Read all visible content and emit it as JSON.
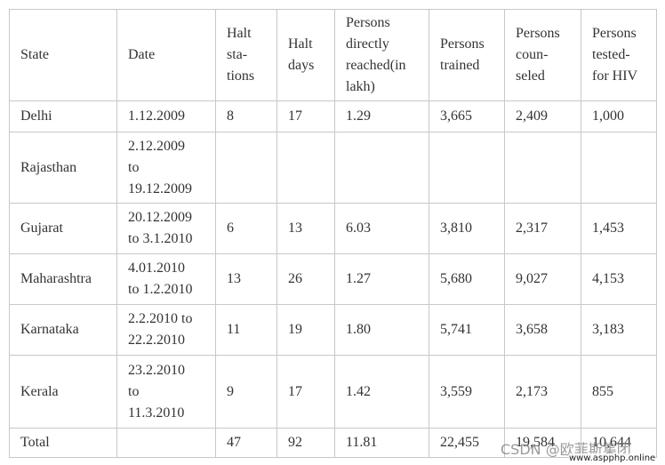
{
  "table": {
    "header": [
      [
        "State"
      ],
      [
        "Date"
      ],
      [
        "Halt",
        "sta-",
        "tions"
      ],
      [
        "Halt",
        "days"
      ],
      [
        "Persons",
        "directly",
        "reached(in",
        "lakh)"
      ],
      [
        "Persons",
        "trained"
      ],
      [
        "Persons",
        "coun-",
        "seled"
      ],
      [
        "Persons",
        "tested-",
        "for HIV"
      ]
    ],
    "rows": [
      [
        [
          "Delhi"
        ],
        [
          "1.12.2009"
        ],
        [
          "8"
        ],
        [
          "17"
        ],
        [
          "1.29"
        ],
        [
          "3,665"
        ],
        [
          "2,409"
        ],
        [
          "1,000"
        ]
      ],
      [
        [
          "Rajasthan"
        ],
        [
          "2.12.2009",
          "to",
          "19.12.2009"
        ],
        null,
        null,
        null,
        null,
        null,
        null
      ],
      [
        [
          "Gujarat"
        ],
        [
          "20.12.2009",
          "to 3.1.2010"
        ],
        [
          "6"
        ],
        [
          "13"
        ],
        [
          "6.03"
        ],
        [
          "3,810"
        ],
        [
          "2,317"
        ],
        [
          "1,453"
        ]
      ],
      [
        [
          "Maharashtra"
        ],
        [
          "4.01.2010",
          "to 1.2.2010"
        ],
        [
          "13"
        ],
        [
          "26"
        ],
        [
          "1.27"
        ],
        [
          "5,680"
        ],
        [
          "9,027"
        ],
        [
          "4,153"
        ]
      ],
      [
        [
          "Karnataka"
        ],
        [
          "2.2.2010 to",
          "22.2.2010"
        ],
        [
          "11"
        ],
        [
          "19"
        ],
        [
          "1.80"
        ],
        [
          "5,741"
        ],
        [
          "3,658"
        ],
        [
          "3,183"
        ]
      ],
      [
        [
          "Kerala"
        ],
        [
          "23.2.2010",
          "to",
          "11.3.2010"
        ],
        [
          "9"
        ],
        [
          "17"
        ],
        [
          "1.42"
        ],
        [
          "3,559"
        ],
        [
          "2,173"
        ],
        [
          "855"
        ]
      ],
      [
        [
          "Total"
        ],
        null,
        [
          "47"
        ],
        [
          "92"
        ],
        [
          "11.81"
        ],
        [
          "22,455"
        ],
        [
          "19,584"
        ],
        [
          "10,644"
        ]
      ]
    ]
  },
  "watermark": {
    "source": "CSDN @欧菲斯集团",
    "site": "www.aspphp.online"
  }
}
